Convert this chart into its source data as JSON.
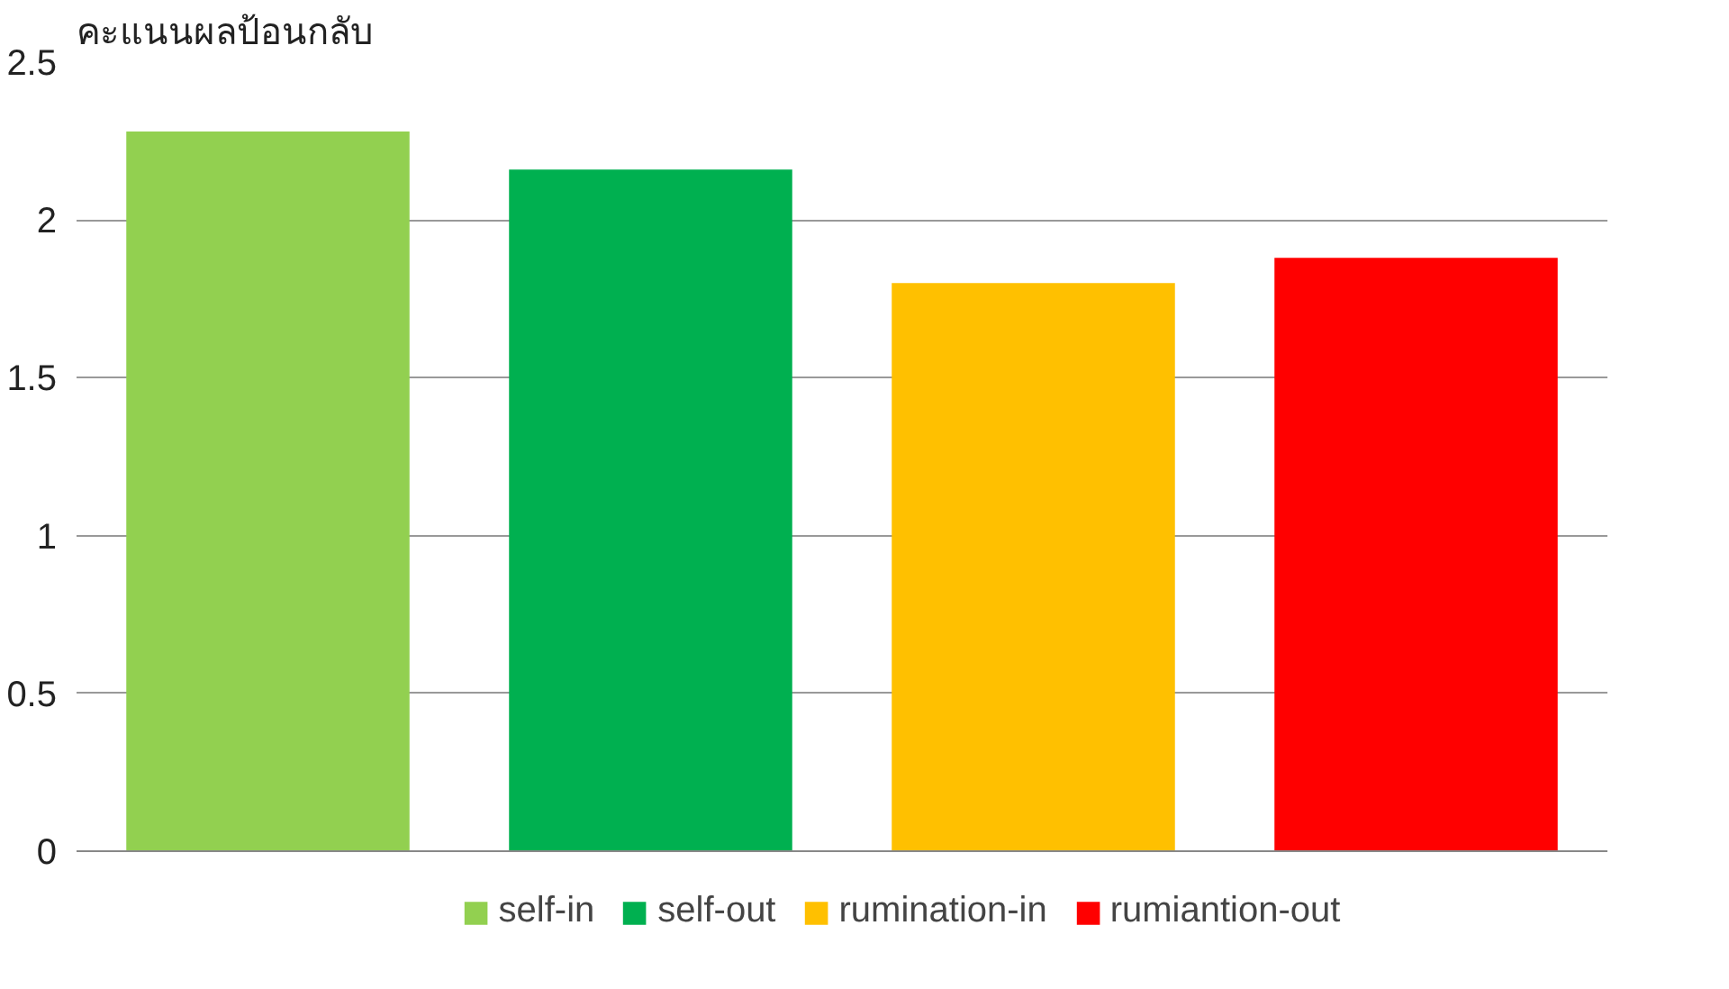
{
  "chart_data": {
    "type": "bar",
    "ylabel": "คะแนนผลป้อนกลับ",
    "categories": [
      null
    ],
    "series": [
      {
        "name": "self-in",
        "color": "#92d050",
        "values": [
          2.28
        ]
      },
      {
        "name": "self-out",
        "color": "#00b050",
        "values": [
          2.16
        ]
      },
      {
        "name": "rumination-in",
        "color": "#ffc000",
        "values": [
          1.8
        ]
      },
      {
        "name": "rumiantion-out",
        "color": "#ff0000",
        "values": [
          1.88
        ]
      }
    ],
    "ylim": [
      0,
      2.5
    ],
    "yticks": [
      0,
      0.5,
      1,
      1.5,
      2,
      2.5
    ],
    "grid": "y",
    "legend": "bottom"
  }
}
